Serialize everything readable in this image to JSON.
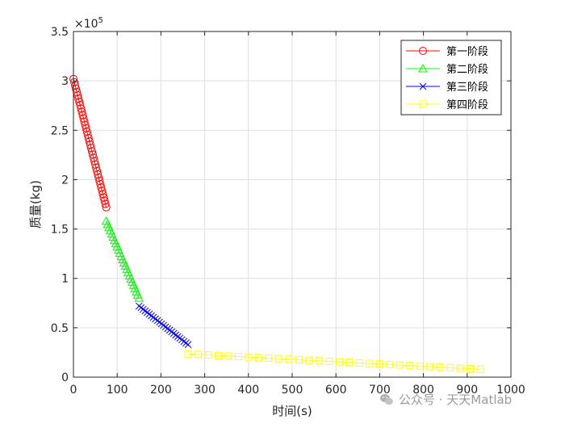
{
  "chart_data": {
    "type": "line",
    "xlabel": "时间(s)",
    "ylabel": "质量(kg)",
    "y_exponent": "×10^5",
    "xlim": [
      0,
      1000
    ],
    "ylim": [
      0,
      350000
    ],
    "x_ticks": [
      0,
      100,
      200,
      300,
      400,
      500,
      600,
      700,
      800,
      900,
      1000
    ],
    "x_tick_labels": [
      "0",
      "100",
      "200",
      "300",
      "400",
      "500",
      "600",
      "700",
      "800",
      "900",
      "1000"
    ],
    "y_ticks": [
      0,
      50000,
      100000,
      150000,
      200000,
      250000,
      300000,
      350000
    ],
    "y_tick_labels": [
      "0",
      "0.5",
      "1",
      "1.5",
      "2",
      "2.5",
      "3",
      "3.5"
    ],
    "grid": true,
    "legend_position": "top-right",
    "series": [
      {
        "name": "第一阶段",
        "color": "#ff0000",
        "marker": "circle",
        "x_start": 0,
        "x_end": 75,
        "y_start": 302000,
        "y_end": 172000,
        "n_points": 40
      },
      {
        "name": "第二阶段",
        "color": "#00ff00",
        "marker": "triangle",
        "x_start": 75,
        "x_end": 150,
        "y_start": 158000,
        "y_end": 80000,
        "n_points": 25
      },
      {
        "name": "第三阶段",
        "color": "#0000ff",
        "marker": "x",
        "x_start": 150,
        "x_end": 262,
        "y_start": 72000,
        "y_end": 33000,
        "n_points": 25
      },
      {
        "name": "第四阶段",
        "color": "#ffff00",
        "marker": "square",
        "x_start": 262,
        "x_end": 930,
        "y_start": 23500,
        "y_end": 8000,
        "n_points": 30
      }
    ]
  },
  "watermark": {
    "text": "公众号 · 天天Matlab",
    "icon": "wechat-icon"
  }
}
